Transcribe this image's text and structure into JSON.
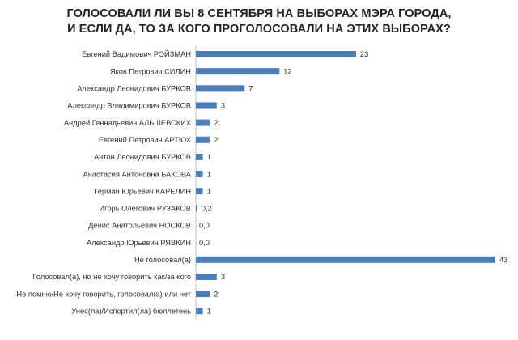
{
  "chart_data": {
    "type": "bar",
    "orientation": "horizontal",
    "title_lines": [
      "ГОЛОСОВАЛИ ЛИ ВЫ 8 СЕНТЯБРЯ НА ВЫБОРАХ МЭРА ГОРОДА,",
      "И ЕСЛИ ДА, ТО ЗА КОГО ПРОГОЛОСОВАЛИ НА ЭТИХ ВЫБОРАХ?"
    ],
    "categories": [
      "Евгений Вадимович РОЙЗМАН",
      "Яков Петрович СИЛИН",
      "Александр Леонидович БУРКОВ",
      "Александр Владимирович БУРКОВ",
      "Андрей Геннадьевич АЛЬШЕВСКИХ",
      "Евгений Петрович АРТЮХ",
      "Антон Леонидович БУРКОВ",
      "Анастасия Антоновна БАКОВА",
      "Герман Юрьевич КАРЕЛИН",
      "Игорь Олегович РУЗАКОВ",
      "Денис Анатольевич НОСКОВ",
      "Александр Юрьевич РЯВКИН",
      "Не голосовал(а)",
      "Голосовал(а), но не хочу говорить как/за кого",
      "Не помню/Не хочу говорить, голосовал(а) или нет",
      "Унес(ла)/Испортил(ла) бюллетень"
    ],
    "values": [
      23,
      12,
      7,
      3,
      2,
      2,
      1,
      1,
      1,
      0.2,
      0,
      0,
      43,
      3,
      2,
      1
    ],
    "value_labels": [
      "23",
      "12",
      "7",
      "3",
      "2",
      "2",
      "1",
      "1",
      "1",
      "0,2",
      "0,0",
      "0,0",
      "43",
      "3",
      "2",
      "1"
    ],
    "xlim": [
      0,
      43
    ],
    "grid": false,
    "legend": "none",
    "bar_color": "#4a7ebb"
  }
}
